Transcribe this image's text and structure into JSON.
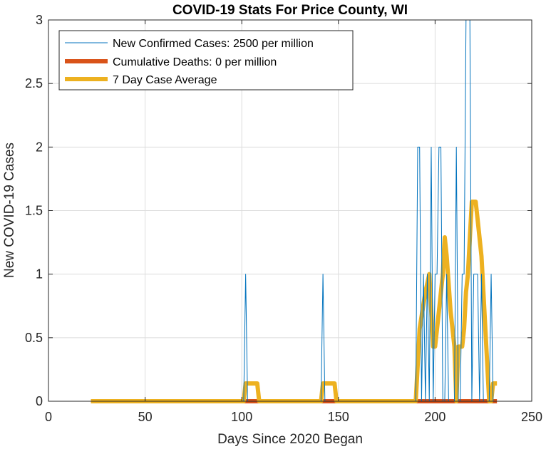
{
  "chart_data": {
    "type": "line",
    "title": "COVID-19 Stats For Price County, WI",
    "xlabel": "Days Since 2020 Began",
    "ylabel": "New COVID-19 Cases",
    "xlim": [
      0,
      250
    ],
    "ylim": [
      0,
      3
    ],
    "xticks": [
      0,
      50,
      100,
      150,
      200,
      250
    ],
    "yticks": [
      0,
      0.5,
      1,
      1.5,
      2,
      2.5,
      3
    ],
    "xtick_labels": [
      "0",
      "50",
      "100",
      "150",
      "200",
      "250"
    ],
    "ytick_labels": [
      "0",
      "0.5",
      "1",
      "1.5",
      "2",
      "2.5",
      "3"
    ],
    "grid": true,
    "legend_position": "top-left",
    "series": [
      {
        "name": "New Confirmed Cases: 2500 per million",
        "color": "#0072BD",
        "style": "thin",
        "x": [
          22,
          101,
          102,
          103,
          141,
          142,
          143,
          190,
          191,
          192,
          193,
          194,
          195,
          196,
          197,
          198,
          199,
          200,
          201,
          202,
          203,
          204,
          205,
          206,
          207,
          208,
          209,
          210,
          211,
          212,
          213,
          214,
          215,
          216,
          217,
          218,
          219,
          220,
          221,
          222,
          223,
          224,
          225,
          226,
          227,
          228,
          229,
          230,
          232
        ],
        "y": [
          0,
          0,
          1,
          0,
          0,
          1,
          0,
          0,
          2,
          2,
          0,
          1,
          0,
          1,
          0,
          2,
          0,
          1,
          1,
          2,
          2,
          0,
          0,
          1,
          0,
          0,
          0,
          0,
          2,
          0,
          0,
          1,
          1,
          3,
          3,
          3,
          0,
          1,
          1,
          1,
          0,
          1,
          0,
          0,
          0,
          0,
          1,
          0,
          0
        ]
      },
      {
        "name": "Cumulative Deaths: 0 per million",
        "color": "#D95319",
        "style": "thick",
        "x": [
          22,
          232
        ],
        "y": [
          0,
          0
        ]
      },
      {
        "name": "7 Day Case Average",
        "color": "#EDB120",
        "style": "thick",
        "x": [
          22,
          101,
          102,
          108,
          109,
          141,
          142,
          148,
          149,
          190,
          192,
          195,
          197,
          199,
          200,
          202,
          204,
          205,
          206,
          208,
          210,
          211,
          212,
          214,
          215,
          216,
          217,
          218,
          219,
          221,
          222,
          224,
          226,
          228,
          229,
          230,
          232
        ],
        "y": [
          0,
          0,
          0.14,
          0.14,
          0,
          0,
          0.14,
          0.14,
          0,
          0,
          0.57,
          0.86,
          1.0,
          0.43,
          0.43,
          0.71,
          1.0,
          1.29,
          1.14,
          0.71,
          0.43,
          0,
          0.43,
          0.43,
          0.57,
          0.86,
          1.0,
          1.29,
          1.57,
          1.57,
          1.43,
          1.14,
          0.57,
          0,
          0,
          0.14,
          0.14
        ]
      }
    ]
  }
}
